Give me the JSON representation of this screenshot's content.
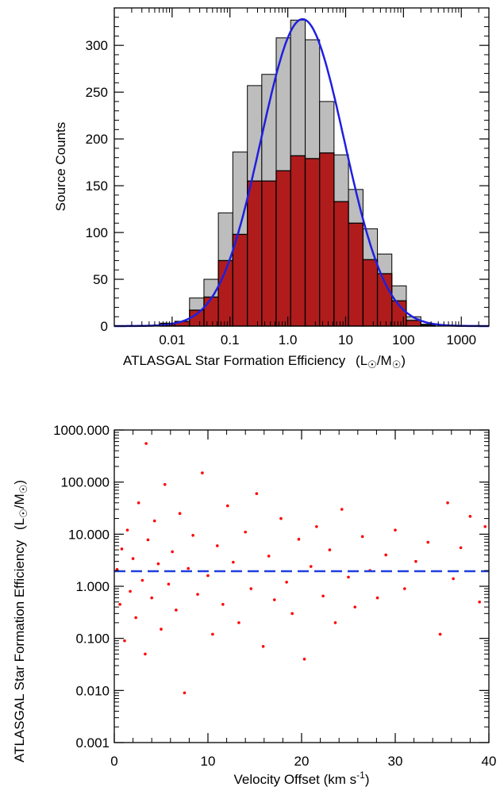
{
  "chart_data": [
    {
      "type": "bar",
      "xlabel": "ATLASGAL Star Formation Efficiency",
      "xunit_parts": [
        "(L",
        "/M",
        ")"
      ],
      "ylabel": "Source Counts",
      "xscale": "log",
      "xlim": [
        0.001,
        3000
      ],
      "ylim": [
        0,
        340
      ],
      "xticks": [
        {
          "value": 0.01,
          "label": "0.01"
        },
        {
          "value": 0.1,
          "label": "0.1"
        },
        {
          "value": 1,
          "label": "1.0"
        },
        {
          "value": 10,
          "label": "10"
        },
        {
          "value": 100,
          "label": "100"
        },
        {
          "value": 1000,
          "label": "1000"
        }
      ],
      "yticks": [
        {
          "value": 0,
          "label": "0"
        },
        {
          "value": 50,
          "label": "50"
        },
        {
          "value": 100,
          "label": "100"
        },
        {
          "value": 150,
          "label": "150"
        },
        {
          "value": 200,
          "label": "200"
        },
        {
          "value": 250,
          "label": "250"
        },
        {
          "value": 300,
          "label": "300"
        }
      ],
      "bin_edges": [
        0.0063,
        0.0112,
        0.02,
        0.0355,
        0.063,
        0.112,
        0.2,
        0.355,
        0.63,
        1.12,
        2.0,
        3.55,
        6.3,
        11.2,
        20,
        35.5,
        63,
        112,
        200,
        355
      ],
      "series": [
        {
          "color": "#bdbdbd",
          "values": [
            3,
            5,
            30,
            50,
            121,
            186,
            257,
            269,
            308,
            327,
            306,
            240,
            183,
            146,
            104,
            77,
            43,
            10,
            2
          ]
        },
        {
          "color": "#b01c1c",
          "values": [
            3,
            5,
            17,
            31,
            70,
            98,
            155,
            155,
            166,
            182,
            179,
            185,
            133,
            110,
            71,
            56,
            27,
            6,
            1
          ]
        }
      ],
      "fit_curve": {
        "type": "gaussian",
        "color": "#1f1fe0",
        "peak": 328,
        "center_log10": 0.255,
        "sigma_log10": 0.72
      }
    },
    {
      "type": "scatter",
      "xlabel": "Velocity Offset (km s",
      "xlabel_exponent": "-1",
      "xlabel_close": ")",
      "ylabel": "ATLASGAL Star Formation Efficiency",
      "yunit_parts": [
        "(L",
        "/M",
        ")"
      ],
      "xlim": [
        0,
        40
      ],
      "ylim": [
        0.001,
        1000
      ],
      "yscale": "log",
      "xticks": [
        {
          "value": 0,
          "label": "0"
        },
        {
          "value": 10,
          "label": "10"
        },
        {
          "value": 20,
          "label": "20"
        },
        {
          "value": 30,
          "label": "30"
        },
        {
          "value": 40,
          "label": "40"
        }
      ],
      "yticks": [
        {
          "value": 0.001,
          "label": "0.001"
        },
        {
          "value": 0.01,
          "label": "0.010"
        },
        {
          "value": 0.1,
          "label": "0.100"
        },
        {
          "value": 1,
          "label": "1.000"
        },
        {
          "value": 10,
          "label": "10.000"
        },
        {
          "value": 100,
          "label": "100.000"
        },
        {
          "value": 1000,
          "label": "1000.000"
        }
      ],
      "point_color": "#ff0000",
      "reference_line": {
        "y": 1.95,
        "color": "#1f3fe0",
        "style": "dashed"
      },
      "points": [
        {
          "x": 0.3,
          "y": 2.1
        },
        {
          "x": 0.6,
          "y": 0.45
        },
        {
          "x": 0.8,
          "y": 5.2
        },
        {
          "x": 1.1,
          "y": 0.09
        },
        {
          "x": 1.4,
          "y": 12.0
        },
        {
          "x": 1.7,
          "y": 0.8
        },
        {
          "x": 2.0,
          "y": 3.4
        },
        {
          "x": 2.3,
          "y": 0.25
        },
        {
          "x": 2.6,
          "y": 40.0
        },
        {
          "x": 3.0,
          "y": 1.3
        },
        {
          "x": 3.3,
          "y": 0.05
        },
        {
          "x": 3.4,
          "y": 550.0
        },
        {
          "x": 3.6,
          "y": 7.8
        },
        {
          "x": 4.0,
          "y": 0.6
        },
        {
          "x": 4.3,
          "y": 18.0
        },
        {
          "x": 4.7,
          "y": 2.7
        },
        {
          "x": 5.0,
          "y": 0.15
        },
        {
          "x": 5.4,
          "y": 90.0
        },
        {
          "x": 5.8,
          "y": 1.1
        },
        {
          "x": 6.2,
          "y": 4.6
        },
        {
          "x": 6.6,
          "y": 0.35
        },
        {
          "x": 7.0,
          "y": 25.0
        },
        {
          "x": 7.5,
          "y": 0.009
        },
        {
          "x": 7.9,
          "y": 2.2
        },
        {
          "x": 8.4,
          "y": 9.5
        },
        {
          "x": 8.9,
          "y": 0.7
        },
        {
          "x": 9.4,
          "y": 150.0
        },
        {
          "x": 10.0,
          "y": 1.6
        },
        {
          "x": 10.5,
          "y": 0.12
        },
        {
          "x": 11.0,
          "y": 6.0
        },
        {
          "x": 11.6,
          "y": 0.45
        },
        {
          "x": 12.1,
          "y": 35.0
        },
        {
          "x": 12.7,
          "y": 2.9
        },
        {
          "x": 13.3,
          "y": 0.2
        },
        {
          "x": 14.0,
          "y": 11.0
        },
        {
          "x": 14.6,
          "y": 0.9
        },
        {
          "x": 15.2,
          "y": 60.0
        },
        {
          "x": 15.9,
          "y": 0.07
        },
        {
          "x": 16.5,
          "y": 3.8
        },
        {
          "x": 17.1,
          "y": 0.55
        },
        {
          "x": 17.8,
          "y": 20.0
        },
        {
          "x": 18.4,
          "y": 1.2
        },
        {
          "x": 19.0,
          "y": 0.3
        },
        {
          "x": 19.7,
          "y": 8.0
        },
        {
          "x": 20.3,
          "y": 0.04
        },
        {
          "x": 21.0,
          "y": 2.4
        },
        {
          "x": 21.6,
          "y": 14.0
        },
        {
          "x": 22.3,
          "y": 0.65
        },
        {
          "x": 23.0,
          "y": 5.0
        },
        {
          "x": 23.6,
          "y": 0.2
        },
        {
          "x": 24.3,
          "y": 30.0
        },
        {
          "x": 25.0,
          "y": 1.5
        },
        {
          "x": 25.7,
          "y": 0.4
        },
        {
          "x": 26.5,
          "y": 9.0
        },
        {
          "x": 27.3,
          "y": 2.0
        },
        {
          "x": 28.1,
          "y": 0.6
        },
        {
          "x": 29.0,
          "y": 4.0
        },
        {
          "x": 30.0,
          "y": 12.0
        },
        {
          "x": 31.0,
          "y": 0.9
        },
        {
          "x": 32.2,
          "y": 3.0
        },
        {
          "x": 33.5,
          "y": 7.0
        },
        {
          "x": 34.8,
          "y": 0.12
        },
        {
          "x": 35.6,
          "y": 40.0
        },
        {
          "x": 36.2,
          "y": 1.4
        },
        {
          "x": 37.0,
          "y": 5.5
        },
        {
          "x": 38.0,
          "y": 22.0
        },
        {
          "x": 39.0,
          "y": 0.5
        },
        {
          "x": 39.6,
          "y": 14.0
        }
      ]
    }
  ]
}
